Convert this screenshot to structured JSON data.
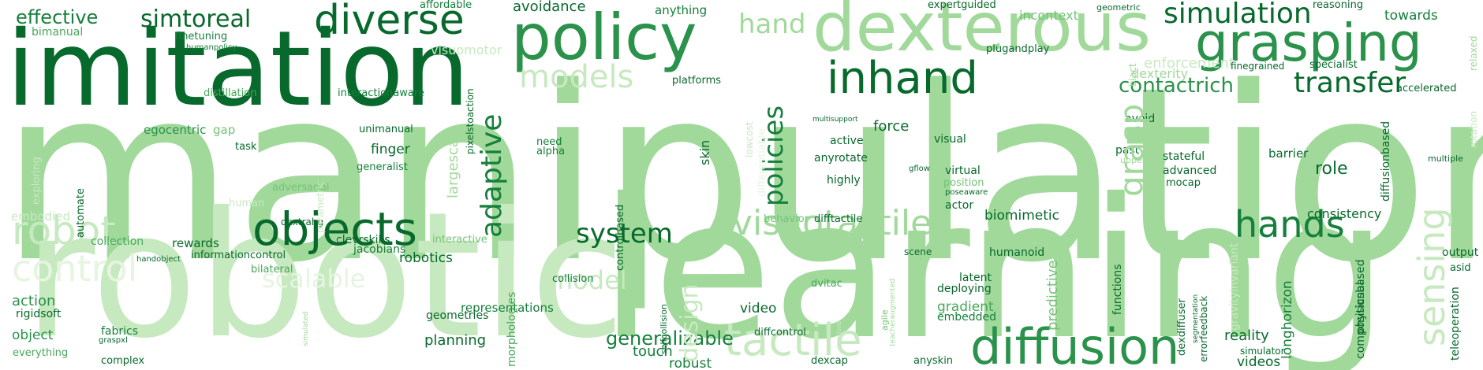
{
  "words": {
    "manipulation": "manipulation",
    "learning": "learning",
    "robotic": "robotic",
    "imitation": "imitation",
    "policy": "policy",
    "dexterous": "dexterous",
    "grasping": "grasping",
    "diverse": "diverse",
    "objects": "objects",
    "inhand": "inhand",
    "visuotactile": "visuotactile",
    "hands": "hands",
    "diffusion": "diffusion",
    "tactile": "tactile",
    "simulation": "simulation",
    "transfer": "transfer",
    "system": "system",
    "models": "models",
    "simtoreal": "simtoreal",
    "effective": "effective",
    "hand": "hand",
    "control": "control",
    "robot": "robot",
    "scalable": "scalable",
    "model": "model",
    "contactrich": "contactrich",
    "generalizable": "generalizable",
    "gradient": "gradient",
    "enforcement": "enforcement",
    "dexterity": "dexterity",
    "reality": "reality",
    "consistency": "consistency",
    "biomimetic": "biomimetic",
    "adaptive": "adaptive",
    "policies": "policies",
    "grasp": "grasp",
    "sensing": "sensing",
    "design": "design",
    "predictive": "predictive",
    "avoidance": "avoidance",
    "anything": "anything",
    "towards": "towards",
    "bimanual": "bimanual",
    "finetuning": "finetuning",
    "humanpolicy": "humanpolicy",
    "affordable": "affordable",
    "distillation": "distillation",
    "interactionaware": "interactionaware",
    "egocentric": "egocentric",
    "gap": "gap",
    "task": "task",
    "unimanual": "unimanual",
    "finger": "finger",
    "generalist": "generalist",
    "adversarial": "adversarial",
    "dextrahg": "dextrahg",
    "collection": "collection",
    "rewards": "rewards",
    "clevrskills": "clevrskills",
    "interactive": "interactive",
    "handobject": "handobject",
    "informationcontrol": "informationcontrol",
    "jacobians": "jacobians",
    "robotics": "robotics",
    "bilateral": "bilateral",
    "action": "action",
    "rigidsoft": "rigidsoft",
    "object": "object",
    "fabrics": "fabrics",
    "graspxl": "graspxl",
    "complex": "complex",
    "everything": "everything",
    "representations": "representations",
    "geometries": "geometries",
    "planning": "planning",
    "collision": "collision",
    "need": "need",
    "alpha": "alpha",
    "platforms": "platforms",
    "multisupport": "multisupport",
    "force": "force",
    "active": "active",
    "anyrotate": "anyrotate",
    "highly": "highly",
    "visual": "visual",
    "virtual": "virtual",
    "position": "position",
    "poseaware": "poseaware",
    "actor": "actor",
    "gflow": "gflow",
    "avoid": "avoid",
    "past": "past",
    "upperbody": "upperbody",
    "stateful": "stateful",
    "advanced": "advanced",
    "mocap": "mocap",
    "barrier": "barrier",
    "role": "role",
    "finegrained": "finegrained",
    "specialist": "specialist",
    "accelerated": "accelerated",
    "multiple": "multiple",
    "output": "output",
    "asid": "asid",
    "humanoid": "humanoid",
    "latent": "latent",
    "deploying": "deploying",
    "embedded": "embedded",
    "scene": "scene",
    "video": "video",
    "dvitac": "dvitac",
    "touch": "touch",
    "robust": "robust",
    "diffcontrol": "diffcontrol",
    "dexcap": "dexcap",
    "anyskin": "anyskin",
    "behavior": "behavior",
    "difftactile": "difftactile",
    "simulator": "simulator",
    "videos": "videos",
    "reasoning": "reasoning",
    "geometric": "geometric",
    "expertguided": "expertguided",
    "incontext": "incontext",
    "plugandplay": "plugandplay",
    "human": "human",
    "embodied": "embodied",
    "pixelstoaction": "pixelstoaction",
    "largescale": "largescale",
    "controlbased": "controlbased",
    "skin": "skin",
    "automate": "automate",
    "exploring": "exploring",
    "morphologies": "morphologies",
    "selfcollision": "selfcollision",
    "functions": "functions",
    "physicsbased": "physicsbased",
    "longhorizon": "longhorizon",
    "compositional": "compositional",
    "teleoperation": "teleoperation",
    "diffusionbased": "diffusionbased",
    "dexdiffuser": "dexdiffuser",
    "errorfeedback": "errorfeedback",
    "segmentation": "segmentation",
    "biact": "biact",
    "relaxed": "relaxed",
    "rotation": "rotation",
    "gravityinvariant": "gravityinvariant",
    "parametric": "parametric",
    "simulated": "simulated",
    "agile": "agile",
    "teacheraugmented": "teacheraugmented",
    "motions": "motions",
    "lowcost": "lowcost",
    "differentiable": "differentiable",
    "visuomotor": "visuomotor"
  },
  "palette": [
    "#08692c",
    "#157f3b",
    "#2a924a",
    "#47a758",
    "#73c476",
    "#a1d99b",
    "#c7e9c0",
    "#e5f5e0"
  ]
}
